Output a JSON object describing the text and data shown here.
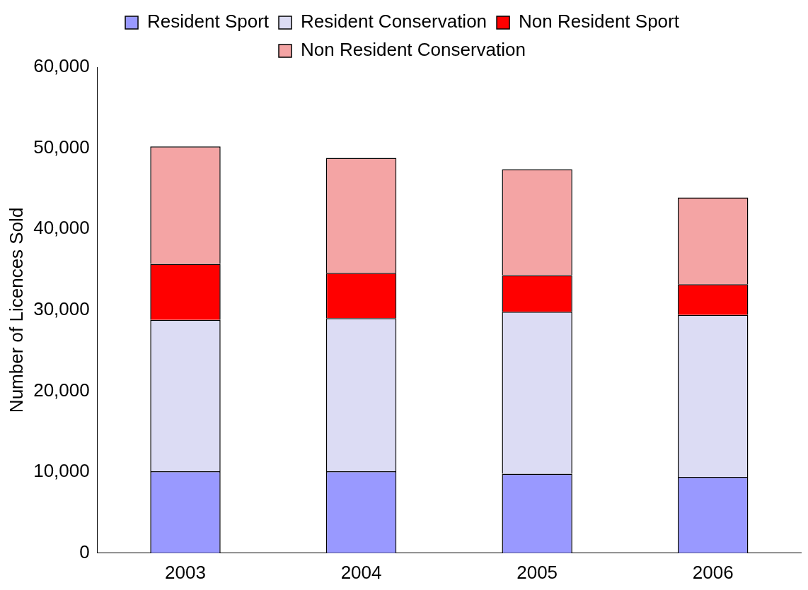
{
  "chart_data": {
    "type": "bar",
    "stacked": true,
    "ylabel": "Number of Licences Sold",
    "categories": [
      "2003",
      "2004",
      "2005",
      "2006"
    ],
    "series": [
      {
        "name": "Resident Sport",
        "color": "#9999ff",
        "values": [
          10100,
          10100,
          9800,
          9400
        ]
      },
      {
        "name": "Resident Conservation",
        "color": "#dcdcf4",
        "values": [
          18700,
          18900,
          20000,
          20000
        ]
      },
      {
        "name": "Non Resident Sport",
        "color": "#ff0000",
        "values": [
          6900,
          5600,
          4500,
          3800
        ]
      },
      {
        "name": "Non Resident Conservation",
        "color": "#f4a4a4",
        "values": [
          14500,
          14200,
          13100,
          10700
        ]
      }
    ],
    "ylim": [
      0,
      60000
    ],
    "yticks": [
      0,
      {
        "value": 10000,
        "label": "10,000"
      },
      {
        "value": 20000,
        "label": "20,000"
      },
      {
        "value": 30000,
        "label": "30,000"
      },
      {
        "value": 40000,
        "label": "40,000"
      },
      {
        "value": 50000,
        "label": "50,000"
      },
      {
        "value": 60000,
        "label": "60,000"
      }
    ],
    "grid": false,
    "legend": "top"
  }
}
